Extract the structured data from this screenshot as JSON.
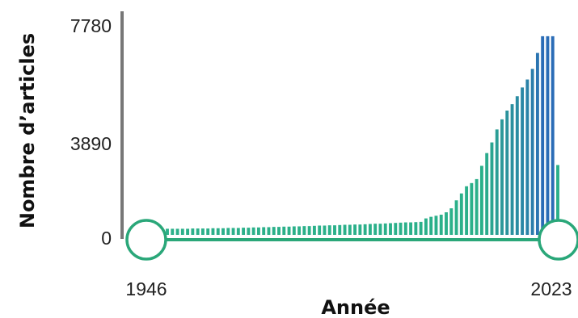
{
  "chart_data": {
    "type": "bar",
    "xlabel": "Année",
    "ylabel": "Nombre d’articles",
    "x_range": [
      1946,
      2023
    ],
    "x_tick_labels": [
      "1946",
      "2023"
    ],
    "ylim": [
      0,
      7780
    ],
    "y_ticks": [
      0,
      3890,
      7780
    ],
    "y_tick_labels": [
      "0",
      "3890",
      "7780"
    ],
    "range_slider": {
      "start": 1946,
      "end": 2023
    },
    "colors": {
      "low": "#2bb08a",
      "high": "#2a6cb6",
      "axis": "#777777",
      "slider": "#2aa779"
    },
    "series": [
      {
        "x": [
          1946,
          1947,
          1948,
          1949,
          1950,
          1951,
          1952,
          1953,
          1954,
          1955,
          1956,
          1957,
          1958,
          1959,
          1960,
          1961,
          1962,
          1963,
          1964,
          1965,
          1966,
          1967,
          1968,
          1969,
          1970,
          1971,
          1972,
          1973,
          1974,
          1975,
          1976,
          1977,
          1978,
          1979,
          1980,
          1981,
          1982,
          1983,
          1984,
          1985,
          1986,
          1987,
          1988,
          1989,
          1990,
          1991,
          1992,
          1993,
          1994,
          1995,
          1996,
          1997,
          1998,
          1999,
          2000,
          2001,
          2002,
          2003,
          2004,
          2005,
          2006,
          2007,
          2008,
          2009,
          2010,
          2011,
          2012,
          2013,
          2014,
          2015,
          2016,
          2017,
          2018,
          2019,
          2020,
          2021,
          2022,
          2023
        ],
        "values": [
          230,
          230,
          230,
          230,
          230,
          240,
          240,
          240,
          240,
          250,
          250,
          250,
          260,
          260,
          260,
          270,
          270,
          280,
          280,
          290,
          290,
          300,
          300,
          310,
          310,
          320,
          320,
          330,
          330,
          340,
          350,
          350,
          360,
          360,
          370,
          380,
          380,
          390,
          390,
          400,
          410,
          420,
          420,
          430,
          440,
          450,
          460,
          470,
          470,
          480,
          490,
          620,
          680,
          720,
          760,
          850,
          1000,
          1300,
          1560,
          1830,
          1950,
          2100,
          2600,
          3080,
          3480,
          3970,
          4350,
          4680,
          4920,
          5220,
          5550,
          5850,
          6250,
          6850,
          7480,
          7480,
          7480,
          2630
        ]
      }
    ]
  }
}
